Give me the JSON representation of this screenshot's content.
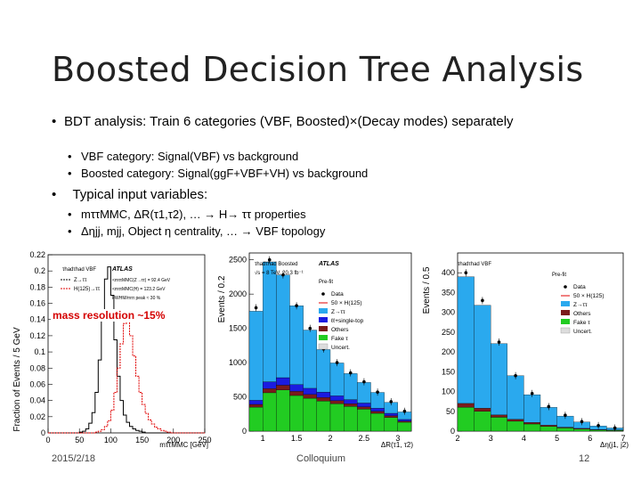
{
  "slide": {
    "title": "Boosted Decision Tree Analysis",
    "bullet1": "BDT analysis: Train 6 categories (VBF, Boosted)×(Decay modes) separately",
    "bullet1_sub": [
      "VBF category: Signal(VBF) vs background",
      "Boosted category: Signal(ggF+VBF+VH) vs background"
    ],
    "bullet2": "Typical input variables:",
    "bullet2_sub": [
      "mττMMC, ΔR(τ1,τ2), … → H→ ττ properties",
      "Δηjj, mjj, Object η centrality, … → VBF topology"
    ],
    "mass_note": "mass resolution ~15%",
    "footer_date": "2015/2/18",
    "footer_center": "Colloquium",
    "footer_page": "12"
  },
  "plot1": {
    "ylabel": "Fraction of Events / 5 GeV",
    "xlabel": "mττMMC [GeV]",
    "atlas": "ATLAS",
    "legend": [
      "Z→ττ",
      "H(125)→ττ"
    ],
    "header": "τhadτhad VBF",
    "info": [
      "<mττMMC(Z→ττ) = 92.4 GeV",
      "<mττMMC(H) = 123.2 GeV",
      "FWHM/mττ peak ≈ 30 %"
    ],
    "colors": {
      "z": "#000000",
      "h": "#e00000"
    }
  },
  "plot2": {
    "ylabel": "Events / 0.2",
    "xlabel": "ΔR(τ1, τ2)",
    "atlas": "ATLAS",
    "header": "τhadτhad Boosted",
    "lumi": "√s = 8 TeV, 20.3 fb⁻¹",
    "prefit": "Pre-fit",
    "legend": [
      "Data",
      "50 × H(125)",
      "Z→ττ",
      "ℓℓ+single-top",
      "Others",
      "Fake τ",
      "Uncert."
    ],
    "colors": {
      "ztt": "#2aa9ee",
      "top": "#1b1be0",
      "others": "#7a1b1b",
      "fake": "#22cc22",
      "signal": "#e00000"
    }
  },
  "plot3": {
    "ylabel": "Events / 0.5",
    "xlabel": "Δη(j1, j2)",
    "header": "τhadτhad VBF",
    "prefit": "Pre-fit",
    "legend": [
      "Data",
      "50 × H(125)",
      "Z→ττ",
      "Others",
      "Fake τ",
      "Uncert."
    ]
  },
  "chart_data": [
    {
      "type": "line",
      "title": "",
      "xlabel": "mττMMC [GeV]",
      "ylabel": "Fraction of Events / 5 GeV",
      "xlim": [
        0,
        250
      ],
      "ylim": [
        0,
        0.22
      ],
      "x": [
        0,
        5,
        10,
        15,
        20,
        25,
        30,
        35,
        40,
        45,
        50,
        55,
        60,
        65,
        70,
        75,
        80,
        85,
        90,
        95,
        100,
        105,
        110,
        115,
        120,
        125,
        130,
        135,
        140,
        145,
        150,
        155,
        160,
        165,
        170,
        175,
        180,
        185,
        190,
        195,
        200,
        205,
        210,
        215,
        220,
        225,
        230,
        235,
        240,
        245
      ],
      "series": [
        {
          "name": "Z→ττ",
          "values": [
            0,
            0,
            0,
            0,
            0,
            0,
            0,
            0,
            0,
            0,
            0.001,
            0.002,
            0.005,
            0.012,
            0.025,
            0.05,
            0.09,
            0.14,
            0.19,
            0.205,
            0.17,
            0.115,
            0.07,
            0.04,
            0.022,
            0.013,
            0.008,
            0.005,
            0.003,
            0.002,
            0.001,
            0,
            0,
            0,
            0,
            0,
            0,
            0,
            0,
            0,
            0,
            0,
            0,
            0,
            0,
            0,
            0,
            0,
            0,
            0
          ]
        },
        {
          "name": "H(125)→ττ",
          "values": [
            0,
            0,
            0,
            0,
            0,
            0,
            0,
            0,
            0,
            0,
            0,
            0,
            0,
            0,
            0,
            0.001,
            0.002,
            0.004,
            0.008,
            0.015,
            0.028,
            0.05,
            0.08,
            0.11,
            0.135,
            0.14,
            0.12,
            0.095,
            0.07,
            0.05,
            0.035,
            0.024,
            0.016,
            0.011,
            0.007,
            0.005,
            0.003,
            0.002,
            0.001,
            0,
            0,
            0,
            0,
            0,
            0,
            0,
            0,
            0,
            0,
            0
          ]
        }
      ],
      "yticks": [
        0,
        0.02,
        0.04,
        0.06,
        0.08,
        0.1,
        0.12,
        0.14,
        0.16,
        0.18,
        0.2,
        0.22
      ],
      "xticks": [
        0,
        50,
        100,
        150,
        200,
        250
      ]
    },
    {
      "type": "bar",
      "title": "",
      "xlabel": "ΔR(τ1, τ2)",
      "ylabel": "Events / 0.2",
      "xlim": [
        0.8,
        3.2
      ],
      "ylim": [
        0,
        2600
      ],
      "x": [
        0.8,
        1.0,
        1.2,
        1.4,
        1.6,
        1.8,
        2.0,
        2.2,
        2.4,
        2.6,
        2.8,
        3.0
      ],
      "series": [
        {
          "name": "Fake τ",
          "values": [
            350,
            560,
            600,
            520,
            480,
            440,
            400,
            360,
            320,
            260,
            200,
            130
          ]
        },
        {
          "name": "Others",
          "values": [
            40,
            60,
            70,
            60,
            55,
            50,
            45,
            40,
            35,
            30,
            25,
            15
          ]
        },
        {
          "name": "ℓℓ+single-top",
          "values": [
            60,
            100,
            110,
            100,
            90,
            80,
            70,
            60,
            55,
            45,
            35,
            25
          ]
        },
        {
          "name": "Z→ττ",
          "values": [
            1300,
            1750,
            1500,
            1150,
            850,
            620,
            480,
            380,
            300,
            230,
            160,
            110
          ]
        },
        {
          "name": "Data",
          "values": [
            1800,
            2500,
            2280,
            1830,
            1500,
            1200,
            1000,
            850,
            720,
            570,
            430,
            290
          ]
        }
      ],
      "yticks": [
        0,
        500,
        1000,
        1500,
        2000,
        2500
      ],
      "xticks": [
        1,
        1.5,
        2,
        2.5,
        3
      ]
    },
    {
      "type": "bar",
      "title": "",
      "xlabel": "Δη(j1, j2)",
      "ylabel": "Events / 0.5",
      "xlim": [
        2,
        7
      ],
      "ylim": [
        0,
        450
      ],
      "x": [
        2,
        2.5,
        3,
        3.5,
        4,
        4.5,
        5,
        5.5,
        6,
        6.5
      ],
      "series": [
        {
          "name": "Fake τ",
          "values": [
            60,
            50,
            35,
            25,
            18,
            12,
            8,
            5,
            3,
            2
          ]
        },
        {
          "name": "Others",
          "values": [
            10,
            8,
            6,
            5,
            4,
            3,
            2,
            2,
            1,
            1
          ]
        },
        {
          "name": "Z→ττ",
          "values": [
            320,
            260,
            180,
            110,
            70,
            45,
            28,
            16,
            9,
            5
          ]
        },
        {
          "name": "Data",
          "values": [
            400,
            330,
            225,
            140,
            95,
            62,
            40,
            24,
            14,
            8
          ]
        }
      ],
      "yticks": [
        0,
        50,
        100,
        150,
        200,
        250,
        300,
        350,
        400
      ],
      "xticks": [
        2,
        3,
        4,
        5,
        6,
        7
      ]
    }
  ]
}
